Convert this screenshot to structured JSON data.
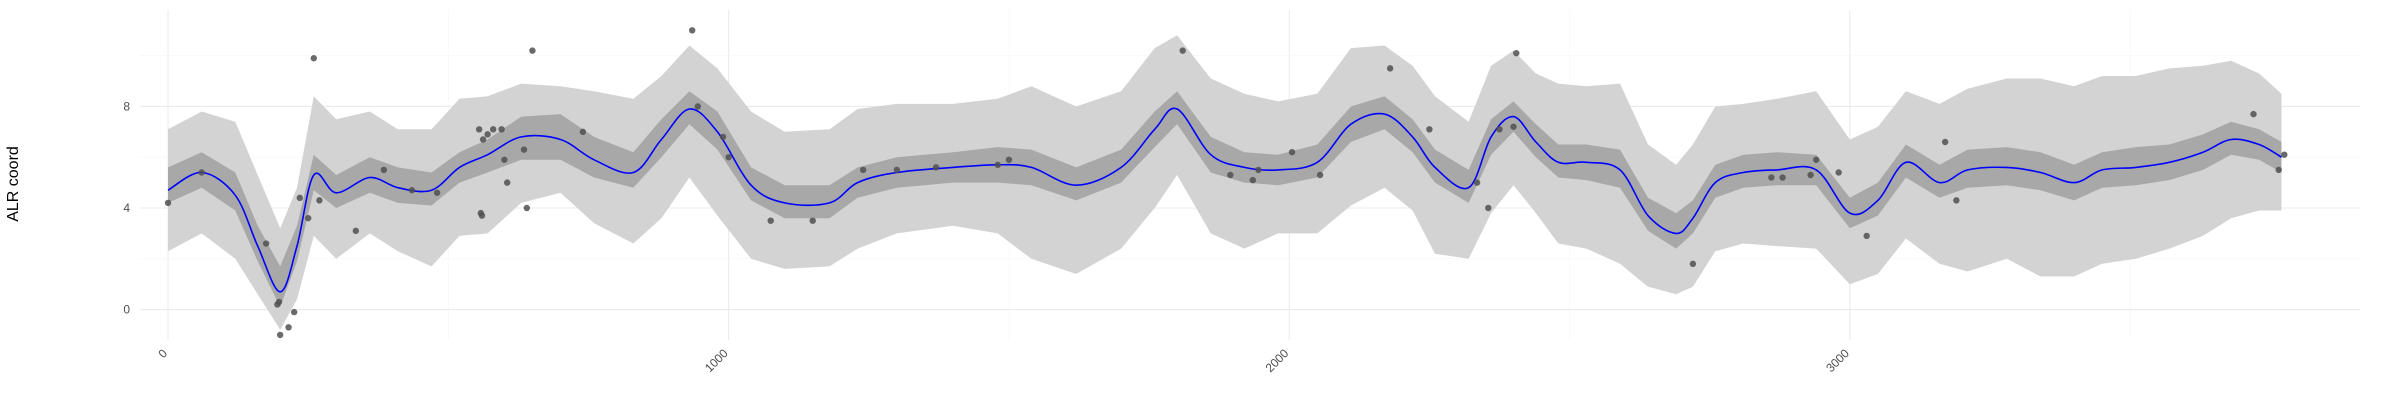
{
  "chart_data": {
    "type": "line",
    "title": "",
    "xlabel": "",
    "ylabel": "ALR coord",
    "xlim": [
      -50,
      3910
    ],
    "ylim": [
      -1.2,
      11.8
    ],
    "x_ticks": [
      0,
      1000,
      2000,
      3000
    ],
    "x_tick_labels": [
      "0",
      "1000",
      "2000",
      "3000"
    ],
    "y_ticks": [
      0,
      4,
      8
    ],
    "y_tick_labels": [
      "0",
      "4",
      "8"
    ],
    "grid": true,
    "legend": "none",
    "colors": {
      "mean_line": "#0000ff",
      "inner_band": "#a8a8a8",
      "outer_band": "#d3d3d3",
      "points": "#505050",
      "grid_major": "#ebebeb",
      "grid_minor": "#f5f5f5"
    },
    "mean": {
      "x": [
        0,
        60,
        120,
        160,
        200,
        230,
        260,
        300,
        360,
        410,
        470,
        520,
        570,
        630,
        700,
        760,
        830,
        880,
        930,
        980,
        1040,
        1100,
        1180,
        1230,
        1300,
        1400,
        1480,
        1540,
        1620,
        1700,
        1760,
        1800,
        1860,
        1920,
        1980,
        2050,
        2110,
        2170,
        2220,
        2260,
        2320,
        2360,
        2400,
        2440,
        2480,
        2530,
        2590,
        2640,
        2690,
        2720,
        2760,
        2810,
        2870,
        2940,
        3000,
        3050,
        3100,
        3160,
        3210,
        3280,
        3340,
        3400,
        3450,
        3510,
        3570,
        3630,
        3680,
        3730,
        3770
      ],
      "y": [
        4.7,
        5.4,
        4.5,
        2.5,
        0.7,
        2.5,
        5.3,
        4.6,
        5.2,
        4.8,
        4.7,
        5.6,
        6.1,
        6.8,
        6.7,
        5.9,
        5.4,
        6.7,
        7.9,
        7.0,
        4.9,
        4.2,
        4.2,
        5.0,
        5.4,
        5.6,
        5.7,
        5.6,
        4.9,
        5.6,
        7.1,
        7.9,
        6.1,
        5.6,
        5.5,
        5.8,
        7.3,
        7.7,
        6.8,
        5.6,
        4.8,
        6.8,
        7.6,
        6.6,
        5.8,
        5.8,
        5.5,
        3.7,
        3.0,
        3.6,
        5.0,
        5.4,
        5.5,
        5.5,
        3.8,
        4.3,
        5.8,
        5.0,
        5.5,
        5.6,
        5.4,
        5.0,
        5.5,
        5.6,
        5.8,
        6.2,
        6.7,
        6.5,
        6.0
      ]
    },
    "inner_band": {
      "lower": [
        4.2,
        4.8,
        3.9,
        1.9,
        0.1,
        1.9,
        4.7,
        4.0,
        4.6,
        4.2,
        4.1,
        5.0,
        5.4,
        5.9,
        5.9,
        5.2,
        4.8,
        6.0,
        7.3,
        6.3,
        4.3,
        3.6,
        3.6,
        4.4,
        4.8,
        5.0,
        5.0,
        4.9,
        4.3,
        5.0,
        6.4,
        7.3,
        5.4,
        5.0,
        4.9,
        5.2,
        6.6,
        7.1,
        6.2,
        5.0,
        4.2,
        6.1,
        7.0,
        6.0,
        5.2,
        5.1,
        4.8,
        3.1,
        2.4,
        3.0,
        4.4,
        4.8,
        4.9,
        4.9,
        3.2,
        3.7,
        5.2,
        4.4,
        4.8,
        4.9,
        4.7,
        4.3,
        4.8,
        4.9,
        5.1,
        5.5,
        6.1,
        5.9,
        5.4
      ],
      "upper": [
        5.6,
        6.2,
        5.4,
        3.3,
        1.7,
        3.3,
        6.1,
        5.3,
        6.0,
        5.6,
        5.4,
        6.2,
        6.7,
        7.6,
        7.7,
        6.8,
        6.2,
        7.5,
        8.6,
        7.8,
        5.6,
        4.9,
        4.9,
        5.6,
        6.0,
        6.2,
        6.4,
        6.3,
        5.6,
        6.3,
        7.8,
        8.6,
        6.8,
        6.2,
        6.1,
        6.5,
        8.0,
        8.4,
        7.5,
        6.3,
        5.5,
        7.5,
        8.2,
        7.3,
        6.5,
        6.5,
        6.3,
        4.4,
        3.8,
        4.3,
        5.7,
        6.1,
        6.2,
        6.1,
        4.4,
        5.0,
        6.5,
        5.7,
        6.3,
        6.4,
        6.2,
        5.7,
        6.2,
        6.4,
        6.5,
        6.9,
        7.4,
        7.1,
        6.6
      ]
    },
    "outer_band": {
      "lower": [
        2.3,
        3.0,
        2.0,
        0.6,
        -0.8,
        0.4,
        2.9,
        2.0,
        3.0,
        2.3,
        1.7,
        2.9,
        3.0,
        4.2,
        4.6,
        3.4,
        2.6,
        3.6,
        5.2,
        3.7,
        2.0,
        1.6,
        1.7,
        2.4,
        3.0,
        3.3,
        3.0,
        2.0,
        1.4,
        2.4,
        4.0,
        5.3,
        3.0,
        2.4,
        3.0,
        3.0,
        4.1,
        4.8,
        3.9,
        2.2,
        2.0,
        3.8,
        4.9,
        3.8,
        2.6,
        2.4,
        1.8,
        0.9,
        0.6,
        0.9,
        2.3,
        2.6,
        2.5,
        2.4,
        1.0,
        1.4,
        2.8,
        1.8,
        1.5,
        2.0,
        1.3,
        1.3,
        1.8,
        2.0,
        2.4,
        2.9,
        3.6,
        3.9,
        3.9
      ],
      "upper": [
        7.1,
        7.8,
        7.4,
        5.3,
        3.2,
        4.8,
        8.4,
        7.5,
        7.8,
        7.1,
        7.1,
        8.3,
        8.4,
        8.9,
        8.8,
        8.6,
        8.3,
        9.2,
        10.4,
        9.5,
        7.8,
        7.0,
        7.1,
        7.9,
        8.1,
        8.1,
        8.3,
        8.8,
        8.0,
        8.6,
        10.3,
        10.8,
        9.1,
        8.5,
        8.2,
        8.5,
        10.3,
        10.4,
        9.6,
        8.4,
        7.4,
        9.6,
        10.2,
        9.3,
        8.9,
        8.8,
        8.9,
        6.5,
        5.7,
        6.5,
        8.0,
        8.1,
        8.3,
        8.6,
        6.7,
        7.2,
        8.6,
        8.1,
        8.7,
        9.1,
        9.1,
        8.8,
        9.2,
        9.2,
        9.5,
        9.6,
        9.8,
        9.3,
        8.5
      ]
    },
    "points": [
      [
        0,
        4.2
      ],
      [
        60,
        5.4
      ],
      [
        175,
        2.6
      ],
      [
        195,
        0.2
      ],
      [
        198,
        0.3
      ],
      [
        200,
        -1.0
      ],
      [
        215,
        -0.7
      ],
      [
        225,
        -0.1
      ],
      [
        235,
        4.4
      ],
      [
        250,
        3.6
      ],
      [
        260,
        9.9
      ],
      [
        270,
        4.3
      ],
      [
        335,
        3.1
      ],
      [
        385,
        5.5
      ],
      [
        435,
        4.7
      ],
      [
        480,
        4.6
      ],
      [
        555,
        7.1
      ],
      [
        558,
        3.8
      ],
      [
        560,
        3.7
      ],
      [
        562,
        6.7
      ],
      [
        570,
        6.9
      ],
      [
        580,
        7.1
      ],
      [
        595,
        7.1
      ],
      [
        600,
        5.9
      ],
      [
        605,
        5.0
      ],
      [
        635,
        6.3
      ],
      [
        640,
        4.0
      ],
      [
        650,
        10.2
      ],
      [
        740,
        7.0
      ],
      [
        935,
        11.0
      ],
      [
        945,
        8.0
      ],
      [
        990,
        6.8
      ],
      [
        1000,
        6.0
      ],
      [
        1075,
        3.5
      ],
      [
        1150,
        3.5
      ],
      [
        1240,
        5.5
      ],
      [
        1300,
        5.5
      ],
      [
        1370,
        5.6
      ],
      [
        1480,
        5.7
      ],
      [
        1500,
        5.9
      ],
      [
        1810,
        10.2
      ],
      [
        1895,
        5.3
      ],
      [
        1935,
        5.1
      ],
      [
        1945,
        5.5
      ],
      [
        2005,
        6.2
      ],
      [
        2055,
        5.3
      ],
      [
        2180,
        9.5
      ],
      [
        2250,
        7.1
      ],
      [
        2335,
        5.0
      ],
      [
        2355,
        4.0
      ],
      [
        2375,
        7.1
      ],
      [
        2400,
        7.2
      ],
      [
        2405,
        10.1
      ],
      [
        2720,
        1.8
      ],
      [
        2860,
        5.2
      ],
      [
        2880,
        5.2
      ],
      [
        2930,
        5.3
      ],
      [
        2940,
        5.9
      ],
      [
        2980,
        5.4
      ],
      [
        3030,
        2.9
      ],
      [
        3170,
        6.6
      ],
      [
        3190,
        4.3
      ],
      [
        3720,
        7.7
      ],
      [
        3765,
        5.5
      ],
      [
        3775,
        6.1
      ]
    ]
  }
}
